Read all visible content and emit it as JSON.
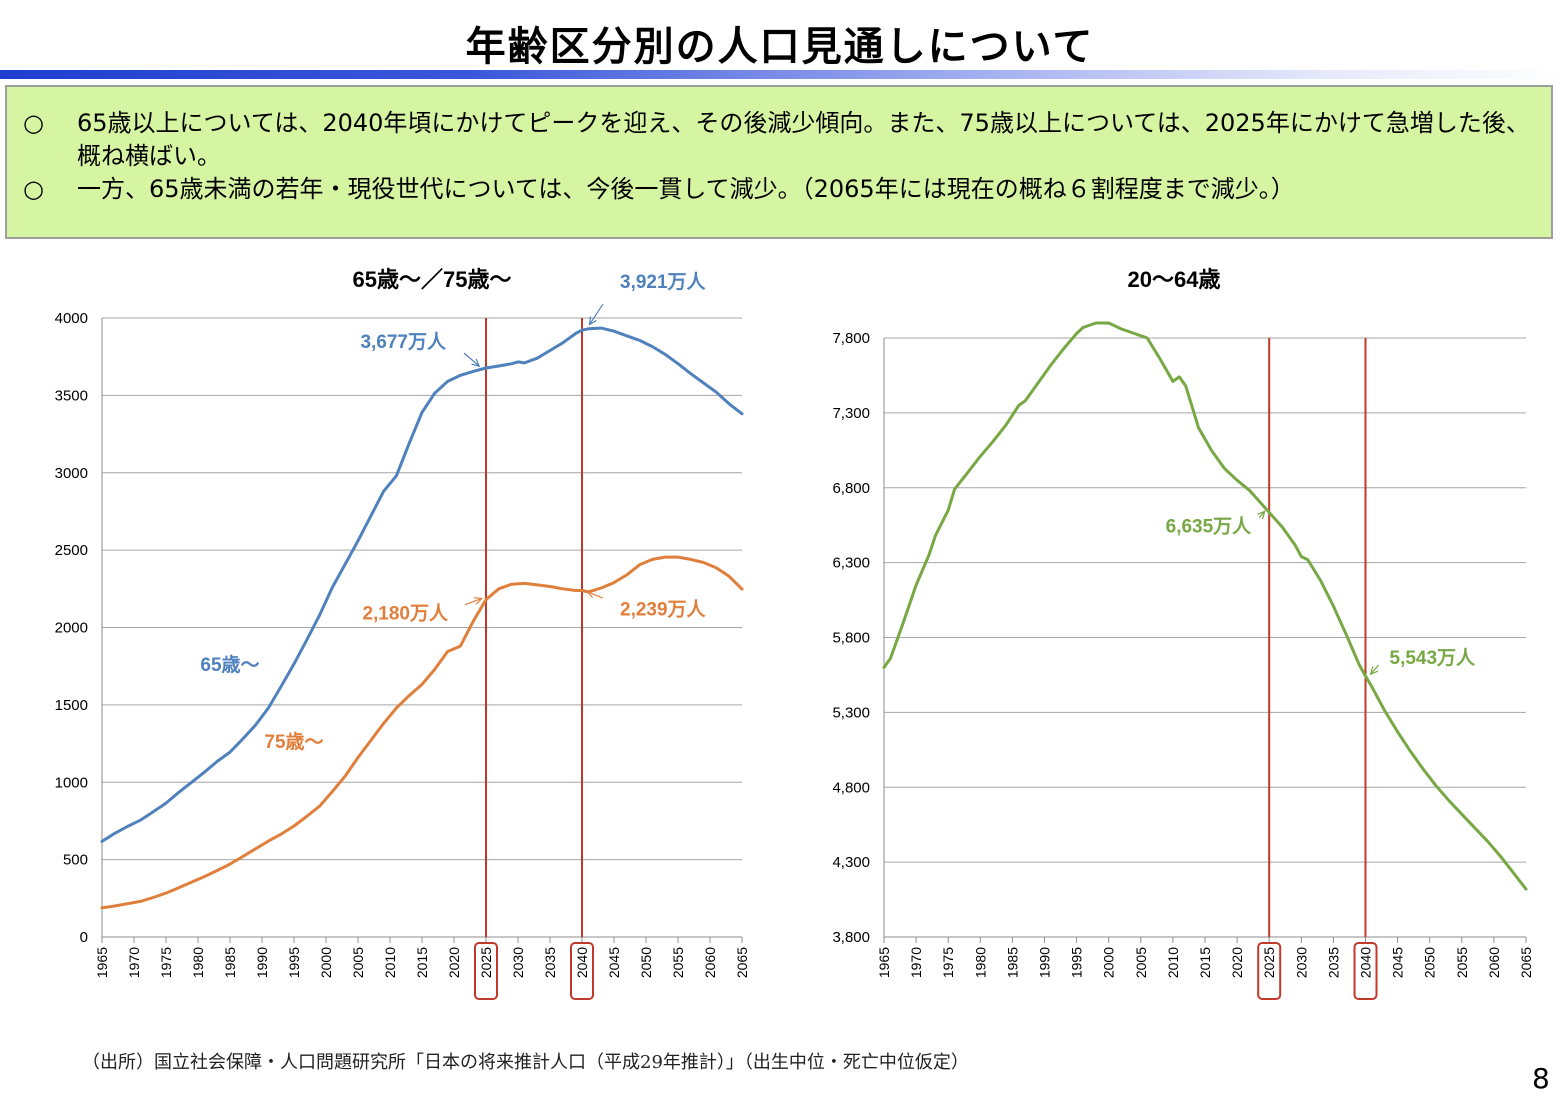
{
  "page": {
    "title": "年齢区分別の人口見通しについて",
    "bullets": [
      {
        "mark": "○",
        "text": "65歳以上については、2040年頃にかけてピークを迎え、その後減少傾向。また、75歳以上については、2025年にかけて急増した後、概ね横ばい。"
      },
      {
        "mark": "○",
        "text": "一方、65歳未満の若年・現役世代については、今後一貫して減少。（2065年には現在の概ね６割程度まで減少。）"
      }
    ],
    "source": "（出所）国立社会保障・人口問題研究所「日本の将来推計人口（平成29年推計）」（出生中位・死亡中位仮定）",
    "page_number": "8"
  },
  "colors": {
    "blue": "#4f81bd",
    "orange": "#e07f3c",
    "green": "#77a844",
    "red_line": "#c0392b",
    "grid": "#a6a6a6"
  },
  "chart_data": [
    {
      "type": "line",
      "title": "65歳～／75歳～",
      "xlabel": "",
      "ylabel": "",
      "xlim": [
        1965,
        2065
      ],
      "ylim": [
        0,
        4000
      ],
      "xticks": [
        "1965",
        "1970",
        "1975",
        "1980",
        "1985",
        "1990",
        "1995",
        "2000",
        "2005",
        "2010",
        "2015",
        "2020",
        "2025",
        "2030",
        "2035",
        "2040",
        "2045",
        "2050",
        "2055",
        "2060",
        "2065"
      ],
      "yticks": [
        "0",
        "500",
        "1000",
        "1500",
        "2000",
        "2500",
        "3000",
        "3500",
        "4000"
      ],
      "vlines": [
        2025,
        2040
      ],
      "highlighted_ticks": [
        "2025",
        "2040"
      ],
      "grid": "horizontal",
      "series": [
        {
          "name": "65歳～",
          "color": "#4f81bd",
          "points": [
            [
              1965,
              618
            ],
            [
              1967,
              670
            ],
            [
              1969,
              715
            ],
            [
              1971,
              755
            ],
            [
              1973,
              810
            ],
            [
              1975,
              865
            ],
            [
              1977,
              935
            ],
            [
              1979,
              1000
            ],
            [
              1981,
              1065
            ],
            [
              1983,
              1135
            ],
            [
              1985,
              1195
            ],
            [
              1987,
              1280
            ],
            [
              1989,
              1370
            ],
            [
              1991,
              1480
            ],
            [
              1993,
              1620
            ],
            [
              1995,
              1765
            ],
            [
              1997,
              1920
            ],
            [
              1999,
              2080
            ],
            [
              2001,
              2260
            ],
            [
              2003,
              2410
            ],
            [
              2005,
              2560
            ],
            [
              2007,
              2720
            ],
            [
              2009,
              2880
            ],
            [
              2011,
              2980
            ],
            [
              2013,
              3190
            ],
            [
              2015,
              3390
            ],
            [
              2017,
              3515
            ],
            [
              2019,
              3590
            ],
            [
              2021,
              3630
            ],
            [
              2023,
              3655
            ],
            [
              2025,
              3677
            ],
            [
              2027,
              3690
            ],
            [
              2029,
              3705
            ],
            [
              2030,
              3716
            ],
            [
              2031,
              3710
            ],
            [
              2033,
              3740
            ],
            [
              2035,
              3790
            ],
            [
              2037,
              3840
            ],
            [
              2039,
              3900
            ],
            [
              2040,
              3921
            ],
            [
              2041,
              3930
            ],
            [
              2043,
              3935
            ],
            [
              2045,
              3915
            ],
            [
              2047,
              3885
            ],
            [
              2049,
              3855
            ],
            [
              2051,
              3815
            ],
            [
              2053,
              3765
            ],
            [
              2055,
              3705
            ],
            [
              2057,
              3640
            ],
            [
              2059,
              3580
            ],
            [
              2061,
              3520
            ],
            [
              2063,
              3445
            ],
            [
              2065,
              3381
            ]
          ]
        },
        {
          "name": "75歳～",
          "color": "#e07f3c",
          "points": [
            [
              1965,
              189
            ],
            [
              1967,
              200
            ],
            [
              1969,
              215
            ],
            [
              1971,
              230
            ],
            [
              1973,
              255
            ],
            [
              1975,
              284
            ],
            [
              1977,
              318
            ],
            [
              1979,
              355
            ],
            [
              1981,
              390
            ],
            [
              1983,
              430
            ],
            [
              1985,
              471
            ],
            [
              1987,
              520
            ],
            [
              1989,
              570
            ],
            [
              1991,
              620
            ],
            [
              1993,
              665
            ],
            [
              1995,
              717
            ],
            [
              1997,
              780
            ],
            [
              1999,
              845
            ],
            [
              2001,
              940
            ],
            [
              2003,
              1040
            ],
            [
              2005,
              1160
            ],
            [
              2007,
              1270
            ],
            [
              2009,
              1380
            ],
            [
              2011,
              1480
            ],
            [
              2013,
              1560
            ],
            [
              2015,
              1632
            ],
            [
              2017,
              1730
            ],
            [
              2019,
              1845
            ],
            [
              2021,
              1880
            ],
            [
              2023,
              2040
            ],
            [
              2025,
              2180
            ],
            [
              2027,
              2250
            ],
            [
              2029,
              2280
            ],
            [
              2031,
              2285
            ],
            [
              2033,
              2275
            ],
            [
              2035,
              2265
            ],
            [
              2037,
              2250
            ],
            [
              2039,
              2239
            ],
            [
              2040,
              2239
            ],
            [
              2041,
              2230
            ],
            [
              2043,
              2255
            ],
            [
              2045,
              2290
            ],
            [
              2047,
              2340
            ],
            [
              2049,
              2405
            ],
            [
              2051,
              2440
            ],
            [
              2053,
              2455
            ],
            [
              2055,
              2455
            ],
            [
              2057,
              2440
            ],
            [
              2059,
              2420
            ],
            [
              2061,
              2385
            ],
            [
              2063,
              2330
            ],
            [
              2065,
              2248
            ]
          ]
        }
      ],
      "annotations": [
        {
          "text": "3,921万人",
          "color": "#4f81bd",
          "x": 2040,
          "y": 3921
        },
        {
          "text": "3,677万人",
          "color": "#4f81bd",
          "x": 2025,
          "y": 3677
        },
        {
          "text": "2,180万人",
          "color": "#e07f3c",
          "x": 2025,
          "y": 2180
        },
        {
          "text": "2,239万人",
          "color": "#e07f3c",
          "x": 2040,
          "y": 2239
        },
        {
          "text": "65歳～",
          "color": "#4f81bd",
          "x": 1985,
          "y": 1720
        },
        {
          "text": "75歳～",
          "color": "#e07f3c",
          "x": 1995,
          "y": 1220
        }
      ]
    },
    {
      "type": "line",
      "title": "20～64歳",
      "xlabel": "",
      "ylabel": "",
      "xlim": [
        1965,
        2065
      ],
      "ylim": [
        3800,
        7800
      ],
      "xticks": [
        "1965",
        "1970",
        "1975",
        "1980",
        "1985",
        "1990",
        "1995",
        "2000",
        "2005",
        "2010",
        "2015",
        "2020",
        "2025",
        "2030",
        "2035",
        "2040",
        "2045",
        "2050",
        "2055",
        "2060",
        "2065"
      ],
      "yticks": [
        "3,800",
        "4,300",
        "4,800",
        "5,300",
        "5,800",
        "6,300",
        "6,800",
        "7,300",
        "7,800"
      ],
      "vlines": [
        2025,
        2040
      ],
      "highlighted_ticks": [
        "2025",
        "2040"
      ],
      "grid": "horizontal",
      "series": [
        {
          "name": "",
          "color": "#77a844",
          "points": [
            [
              1965,
              5600
            ],
            [
              1966,
              5660
            ],
            [
              1968,
              5900
            ],
            [
              1970,
              6150
            ],
            [
              1972,
              6350
            ],
            [
              1973,
              6480
            ],
            [
              1975,
              6650
            ],
            [
              1976,
              6790
            ],
            [
              1978,
              6900
            ],
            [
              1980,
              7010
            ],
            [
              1982,
              7110
            ],
            [
              1984,
              7220
            ],
            [
              1986,
              7350
            ],
            [
              1987,
              7380
            ],
            [
              1989,
              7500
            ],
            [
              1991,
              7620
            ],
            [
              1993,
              7730
            ],
            [
              1995,
              7830
            ],
            [
              1996,
              7870
            ],
            [
              1998,
              7900
            ],
            [
              2000,
              7900
            ],
            [
              2002,
              7860
            ],
            [
              2004,
              7830
            ],
            [
              2006,
              7800
            ],
            [
              2008,
              7660
            ],
            [
              2010,
              7510
            ],
            [
              2011,
              7540
            ],
            [
              2012,
              7480
            ],
            [
              2014,
              7200
            ],
            [
              2016,
              7050
            ],
            [
              2018,
              6930
            ],
            [
              2020,
              6850
            ],
            [
              2022,
              6780
            ],
            [
              2025,
              6635
            ],
            [
              2027,
              6540
            ],
            [
              2029,
              6420
            ],
            [
              2030,
              6340
            ],
            [
              2031,
              6320
            ],
            [
              2033,
              6180
            ],
            [
              2035,
              6010
            ],
            [
              2037,
              5820
            ],
            [
              2039,
              5620
            ],
            [
              2040,
              5543
            ],
            [
              2041,
              5470
            ],
            [
              2043,
              5310
            ],
            [
              2045,
              5170
            ],
            [
              2047,
              5040
            ],
            [
              2049,
              4920
            ],
            [
              2051,
              4810
            ],
            [
              2053,
              4710
            ],
            [
              2055,
              4620
            ],
            [
              2057,
              4530
            ],
            [
              2059,
              4440
            ],
            [
              2061,
              4340
            ],
            [
              2063,
              4230
            ],
            [
              2065,
              4120
            ]
          ]
        }
      ],
      "annotations": [
        {
          "text": "6,635万人",
          "color": "#77a844",
          "x": 2025,
          "y": 6635
        },
        {
          "text": "5,543万人",
          "color": "#77a844",
          "x": 2040,
          "y": 5543
        }
      ]
    }
  ]
}
